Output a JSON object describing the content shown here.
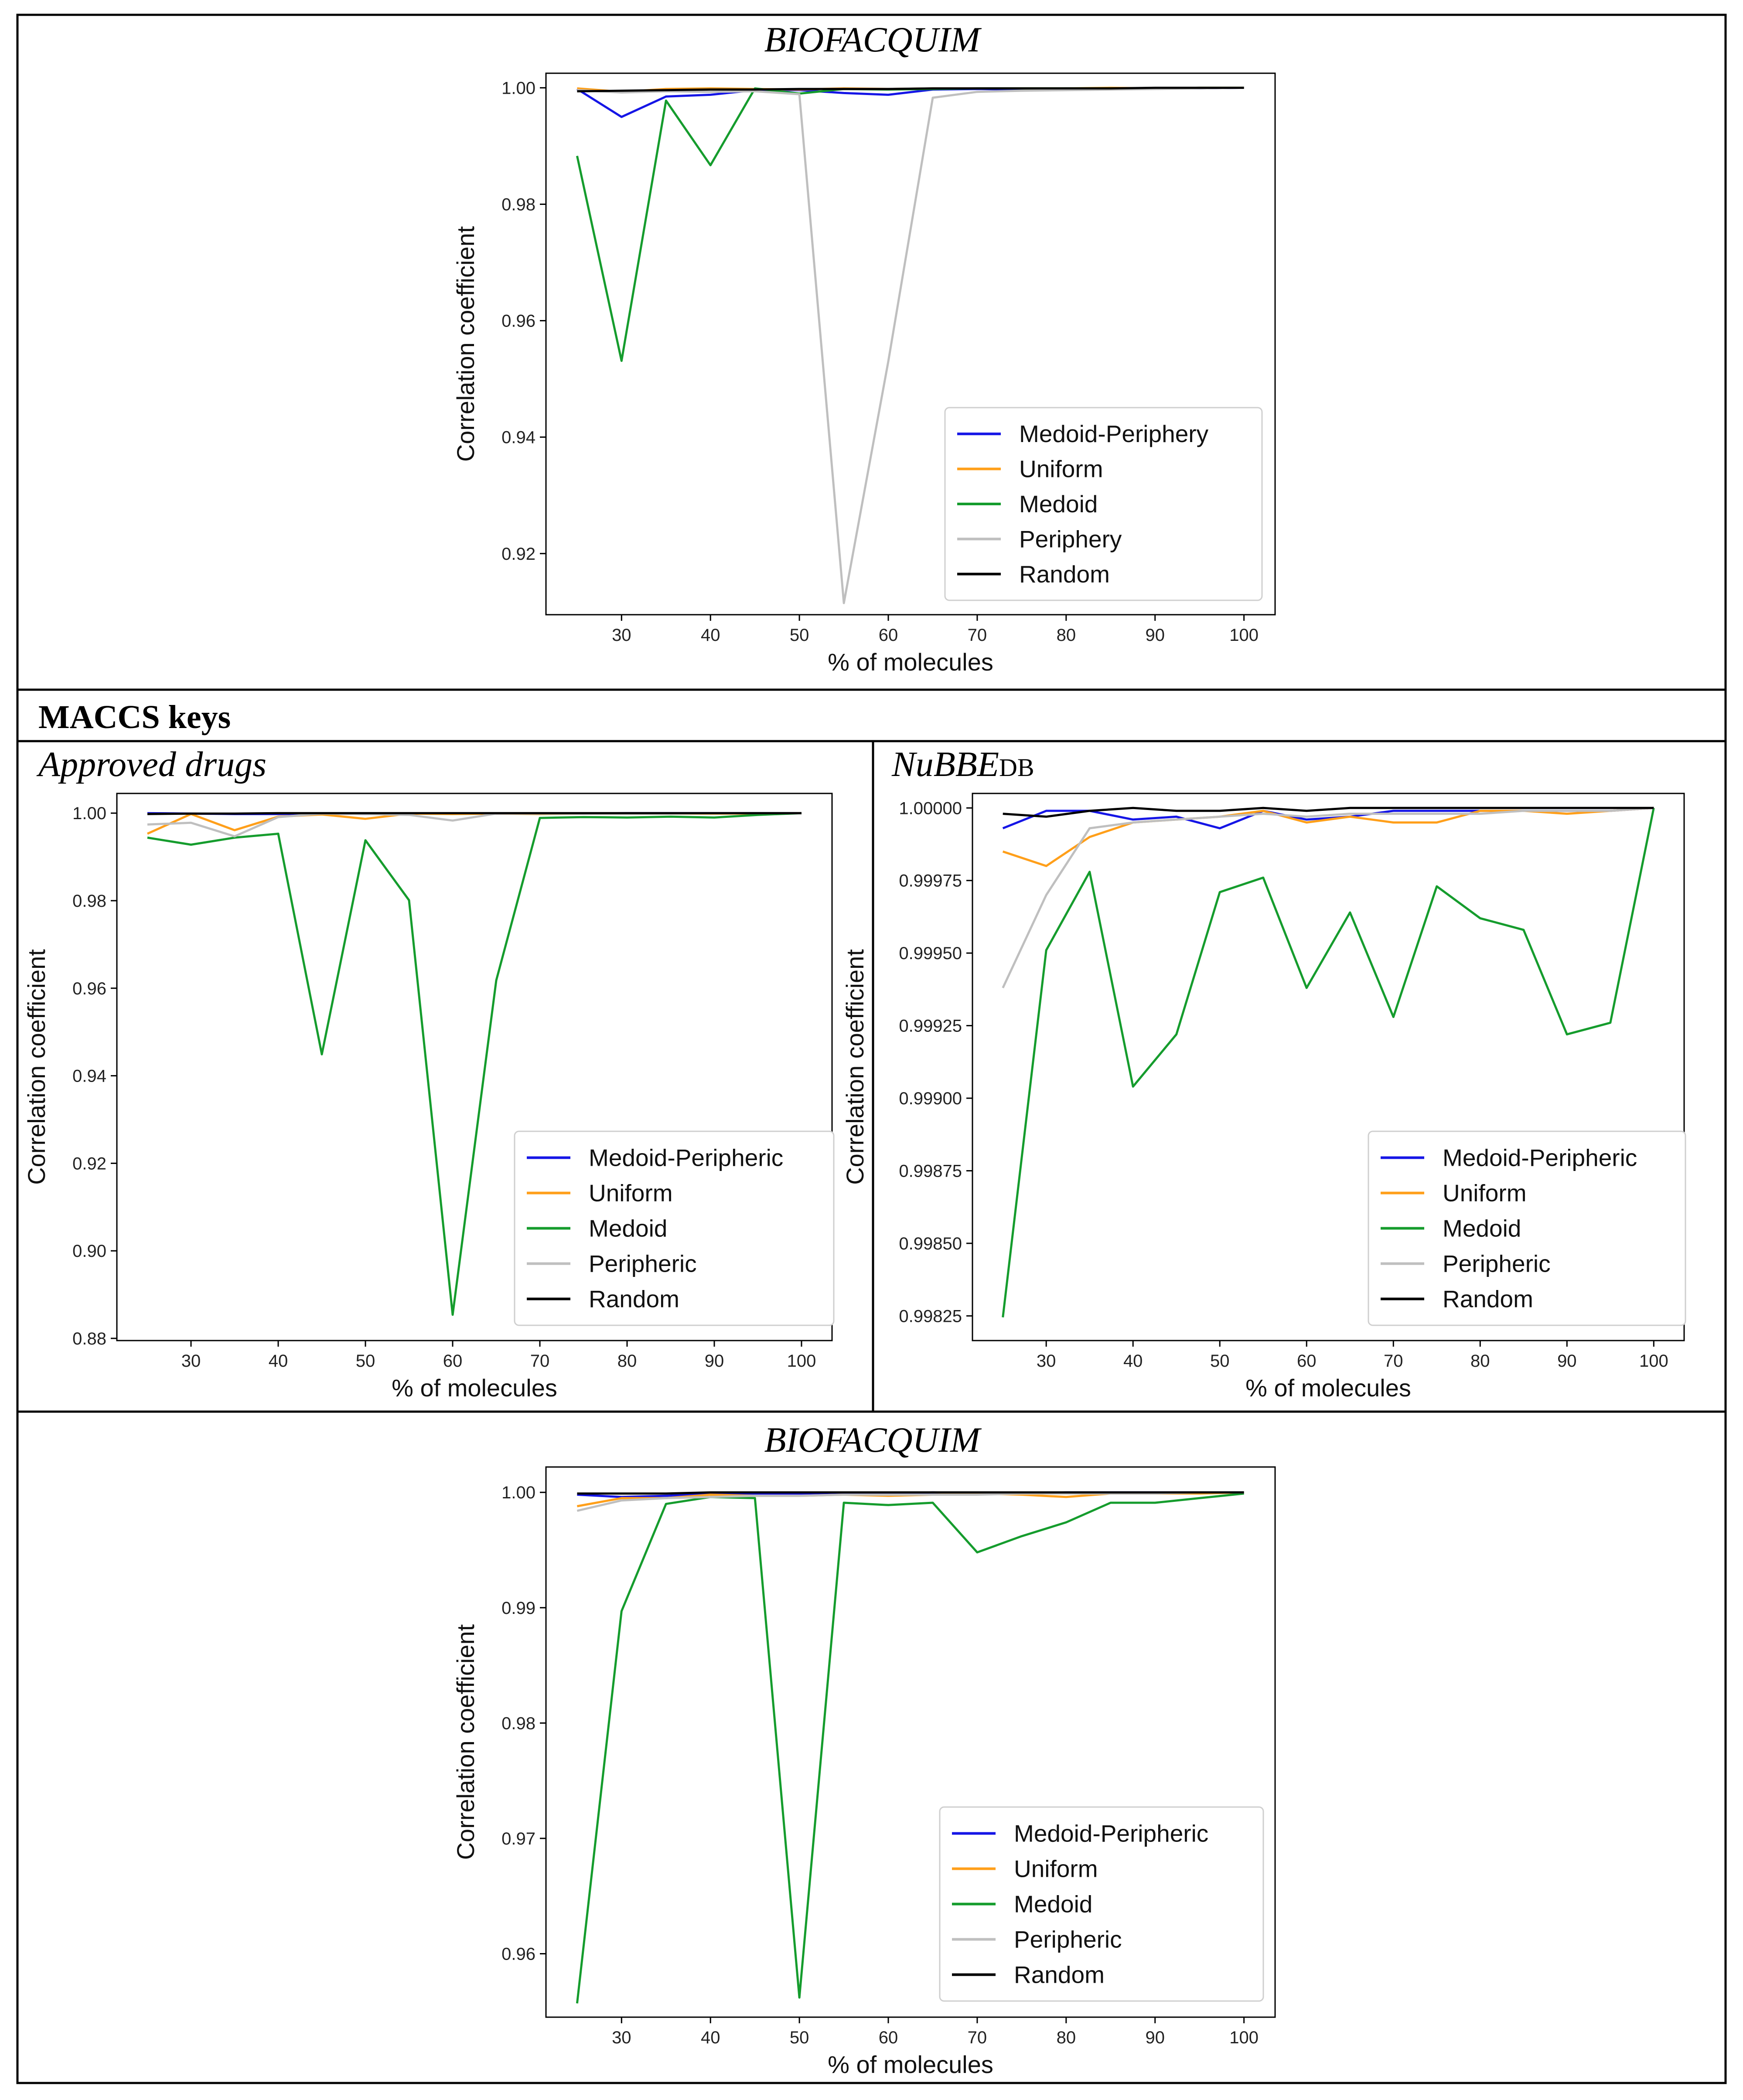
{
  "figure": {
    "section_label": "MACCS keys"
  },
  "colors": {
    "medoid_periphery": "#1515e6",
    "uniform": "#ff9f1a",
    "medoid": "#159c2d",
    "periphery": "#bfbfbf",
    "random": "#000000"
  },
  "chart_data": [
    {
      "id": "chart-top",
      "type": "line",
      "title": "BIOFACQUIM",
      "title_subscript": "",
      "xlabel": "% of molecules",
      "ylabel": "Correlation coefficient",
      "xlim": [
        21.5,
        103.5
      ],
      "ylim": [
        0.9095,
        1.0025
      ],
      "xticks": [
        30,
        40,
        50,
        60,
        70,
        80,
        90,
        100
      ],
      "xtick_labels": [
        "30",
        "40",
        "50",
        "60",
        "70",
        "80",
        "90",
        "100"
      ],
      "yticks": [
        0.92,
        0.94,
        0.96,
        0.98,
        1.0
      ],
      "ytick_labels": [
        "0.92",
        "0.94",
        "0.96",
        "0.98",
        "1.00"
      ],
      "legend_position": "lower-right",
      "x": [
        25,
        30,
        35,
        40,
        45,
        50,
        55,
        60,
        65,
        70,
        75,
        80,
        85,
        90,
        95,
        100
      ],
      "series": [
        {
          "name": "Medoid-Periphery",
          "color_key": "medoid_periphery",
          "values": [
            0.9998,
            0.995,
            0.9985,
            0.9988,
            0.9996,
            0.9996,
            0.9991,
            0.9988,
            0.9997,
            0.9998,
            0.9997,
            0.9999,
            0.9999,
            0.9999,
            0.9999,
            1.0
          ]
        },
        {
          "name": "Uniform",
          "color_key": "uniform",
          "values": [
            0.9999,
            0.9993,
            0.9998,
            0.9999,
            0.9998,
            0.9997,
            0.9999,
            0.9998,
            0.9999,
            0.9999,
            0.9999,
            0.9999,
            1.0,
            0.9999,
            1.0,
            1.0
          ]
        },
        {
          "name": "Medoid",
          "color_key": "medoid",
          "values": [
            0.9883,
            0.9531,
            0.9978,
            0.9867,
            0.9999,
            0.999,
            0.9998,
            0.9997,
            0.9998,
            0.9999,
            0.9999,
            0.9999,
            0.9999,
            0.9999,
            1.0,
            1.0
          ]
        },
        {
          "name": "Periphery",
          "color_key": "periphery",
          "values": [
            0.9996,
            0.9992,
            0.9994,
            0.9993,
            0.9994,
            0.9989,
            0.9115,
            0.953,
            0.9983,
            0.9993,
            0.9995,
            0.9996,
            0.9997,
            0.9998,
            0.9999,
            1.0
          ]
        },
        {
          "name": "Random",
          "color_key": "random",
          "values": [
            0.9994,
            0.9995,
            0.9996,
            0.9997,
            0.9997,
            0.9998,
            0.9998,
            0.9998,
            0.9999,
            0.9999,
            0.9999,
            0.9999,
            0.9999,
            1.0,
            1.0,
            1.0
          ]
        }
      ]
    },
    {
      "id": "chart-approved",
      "type": "line",
      "title": "Approved drugs",
      "title_subscript": "",
      "xlabel": "% of molecules",
      "ylabel": "Correlation coefficient",
      "xlim": [
        21.5,
        103.5
      ],
      "ylim": [
        0.8795,
        1.0045
      ],
      "xticks": [
        30,
        40,
        50,
        60,
        70,
        80,
        90,
        100
      ],
      "xtick_labels": [
        "30",
        "40",
        "50",
        "60",
        "70",
        "80",
        "90",
        "100"
      ],
      "yticks": [
        0.88,
        0.9,
        0.92,
        0.94,
        0.96,
        0.98,
        1.0
      ],
      "ytick_labels": [
        "0.88",
        "0.90",
        "0.92",
        "0.94",
        "0.96",
        "0.98",
        "1.00"
      ],
      "legend_position": "lower-right",
      "x": [
        25,
        30,
        35,
        40,
        45,
        50,
        55,
        60,
        65,
        70,
        75,
        80,
        85,
        90,
        95,
        100
      ],
      "series": [
        {
          "name": "Medoid-Peripheric",
          "color_key": "medoid_periphery",
          "values": [
            1.0,
            0.9999,
            0.9998,
            0.9998,
            0.9999,
            0.9998,
            0.9999,
            0.9999,
            0.9999,
            0.9999,
            0.9999,
            1.0,
            1.0,
            1.0,
            1.0,
            1.0
          ]
        },
        {
          "name": "Uniform",
          "color_key": "uniform",
          "values": [
            0.9953,
            0.9998,
            0.9961,
            0.9992,
            0.9997,
            0.9987,
            0.9999,
            0.9998,
            0.9999,
            0.9998,
            0.9999,
            0.9999,
            0.9999,
            0.9999,
            0.9999,
            1.0
          ]
        },
        {
          "name": "Medoid",
          "color_key": "medoid",
          "values": [
            0.9944,
            0.9928,
            0.9944,
            0.9953,
            0.9449,
            0.9938,
            0.9801,
            0.8854,
            0.9618,
            0.9989,
            0.9991,
            0.999,
            0.9992,
            0.999,
            0.9996,
            1.0
          ]
        },
        {
          "name": "Peripheric",
          "color_key": "periphery",
          "values": [
            0.9974,
            0.9978,
            0.9947,
            0.9991,
            0.9999,
            0.9998,
            0.9996,
            0.9983,
            0.9999,
            0.9999,
            0.9999,
            0.9999,
            0.9999,
            1.0,
            1.0,
            1.0
          ]
        },
        {
          "name": "Random",
          "color_key": "random",
          "values": [
            0.9998,
            0.9999,
            0.9999,
            1.0,
            1.0,
            1.0,
            1.0,
            1.0,
            1.0,
            1.0,
            1.0,
            1.0,
            1.0,
            1.0,
            1.0,
            1.0
          ]
        }
      ]
    },
    {
      "id": "chart-nubbe",
      "type": "line",
      "title": "NuBBE",
      "title_subscript": "DB",
      "xlabel": "% of molecules",
      "ylabel": "Correlation coefficient",
      "xlim": [
        21.5,
        103.5
      ],
      "ylim": [
        0.998165,
        1.00005
      ],
      "xticks": [
        30,
        40,
        50,
        60,
        70,
        80,
        90,
        100
      ],
      "xtick_labels": [
        "30",
        "40",
        "50",
        "60",
        "70",
        "80",
        "90",
        "100"
      ],
      "yticks": [
        0.99825,
        0.9985,
        0.99875,
        0.999,
        0.99925,
        0.9995,
        0.99975,
        1.0
      ],
      "ytick_labels": [
        "0.99825",
        "0.99850",
        "0.99875",
        "0.99900",
        "0.99925",
        "0.99950",
        "0.99975",
        "1.00000"
      ],
      "legend_position": "lower-right",
      "x": [
        25,
        30,
        35,
        40,
        45,
        50,
        55,
        60,
        65,
        70,
        75,
        80,
        85,
        90,
        95,
        100
      ],
      "series": [
        {
          "name": "Medoid-Peripheric",
          "color_key": "medoid_periphery",
          "values": [
            0.99993,
            0.99999,
            0.99999,
            0.99996,
            0.99997,
            0.99993,
            0.99999,
            0.99996,
            0.99997,
            0.99999,
            0.99999,
            0.99999,
            0.99999,
            0.99999,
            0.99999,
            1.0
          ]
        },
        {
          "name": "Uniform",
          "color_key": "uniform",
          "values": [
            0.99985,
            0.9998,
            0.9999,
            0.99995,
            0.99996,
            0.99997,
            0.99999,
            0.99995,
            0.99997,
            0.99995,
            0.99995,
            0.99999,
            0.99999,
            0.99998,
            0.99999,
            1.0
          ]
        },
        {
          "name": "Medoid",
          "color_key": "medoid",
          "values": [
            0.998245,
            0.99951,
            0.99978,
            0.99904,
            0.99922,
            0.99971,
            0.99976,
            0.99938,
            0.99964,
            0.99928,
            0.99973,
            0.99962,
            0.99958,
            0.99922,
            0.99926,
            1.0
          ]
        },
        {
          "name": "Peripheric",
          "color_key": "periphery",
          "values": [
            0.99938,
            0.9997,
            0.99993,
            0.99995,
            0.99996,
            0.99997,
            0.99998,
            0.99997,
            0.99998,
            0.99998,
            0.99998,
            0.99998,
            0.99999,
            0.99999,
            0.99999,
            1.0
          ]
        },
        {
          "name": "Random",
          "color_key": "random",
          "values": [
            0.99998,
            0.99997,
            0.99999,
            1.0,
            0.99999,
            0.99999,
            1.0,
            0.99999,
            1.0,
            1.0,
            1.0,
            1.0,
            1.0,
            1.0,
            1.0,
            1.0
          ]
        }
      ]
    },
    {
      "id": "chart-bottom",
      "type": "line",
      "title": "BIOFACQUIM",
      "title_subscript": "",
      "xlabel": "% of molecules",
      "ylabel": "Correlation coefficient",
      "xlim": [
        21.5,
        103.5
      ],
      "ylim": [
        0.9545,
        1.0022
      ],
      "xticks": [
        30,
        40,
        50,
        60,
        70,
        80,
        90,
        100
      ],
      "xtick_labels": [
        "30",
        "40",
        "50",
        "60",
        "70",
        "80",
        "90",
        "100"
      ],
      "yticks": [
        0.96,
        0.97,
        0.98,
        0.99,
        1.0
      ],
      "ytick_labels": [
        "0.96",
        "0.97",
        "0.98",
        "0.99",
        "1.00"
      ],
      "legend_position": "lower-right",
      "x": [
        25,
        30,
        35,
        40,
        45,
        50,
        55,
        60,
        65,
        70,
        75,
        80,
        85,
        90,
        95,
        100
      ],
      "series": [
        {
          "name": "Medoid-Peripheric",
          "color_key": "medoid_periphery",
          "values": [
            0.9998,
            0.9996,
            0.9997,
            0.9999,
            0.9999,
            0.9999,
            0.9999,
            0.9999,
            1.0,
            0.9999,
            0.9999,
            1.0,
            1.0,
            1.0,
            1.0,
            1.0
          ]
        },
        {
          "name": "Uniform",
          "color_key": "uniform",
          "values": [
            0.9988,
            0.9995,
            0.9995,
            0.9998,
            0.9997,
            0.9997,
            0.9998,
            0.9997,
            0.9998,
            0.9999,
            0.9998,
            0.9996,
            0.9999,
            0.9999,
            0.9999,
            1.0
          ]
        },
        {
          "name": "Medoid",
          "color_key": "medoid",
          "values": [
            0.9557,
            0.9897,
            0.999,
            0.9996,
            0.9995,
            0.9562,
            0.9991,
            0.9989,
            0.9991,
            0.9948,
            0.9962,
            0.9974,
            0.9991,
            0.9991,
            0.9995,
            0.9999
          ]
        },
        {
          "name": "Peripheric",
          "color_key": "periphery",
          "values": [
            0.9984,
            0.9993,
            0.9995,
            0.9996,
            0.9997,
            0.9997,
            0.9998,
            0.9998,
            0.9998,
            0.9998,
            0.9999,
            0.9999,
            0.9999,
            0.9999,
            1.0,
            1.0
          ]
        },
        {
          "name": "Random",
          "color_key": "random",
          "values": [
            0.9999,
            0.9999,
            0.9999,
            1.0,
            1.0,
            1.0,
            1.0,
            1.0,
            1.0,
            1.0,
            1.0,
            1.0,
            1.0,
            1.0,
            1.0,
            1.0
          ]
        }
      ]
    }
  ]
}
